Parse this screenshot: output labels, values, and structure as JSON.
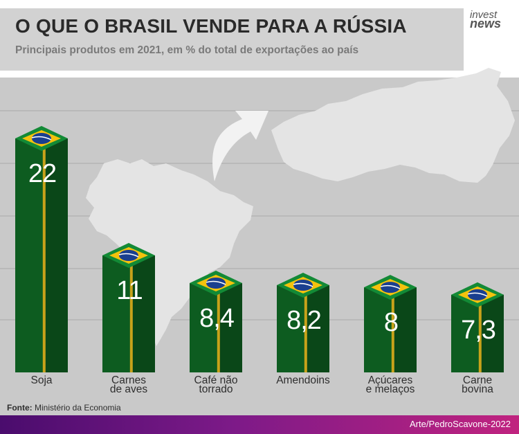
{
  "header": {
    "title": "O QUE O BRASIL VENDE PARA A RÚSSIA",
    "subtitle": "Principais produtos em 2021, em % do total de exportações ao país"
  },
  "logo": {
    "line1": "invest",
    "line2": "news"
  },
  "chart_data": {
    "type": "bar",
    "categories": [
      "Soja",
      "Carnes\nde aves",
      "Café não\ntorrado",
      "Amendoins",
      "Açúcares\ne melaços",
      "Carne\nbovina"
    ],
    "values": [
      22,
      11,
      8.4,
      8.2,
      8,
      7.3
    ],
    "value_labels": [
      "22",
      "11",
      "8,4",
      "8,2",
      "8",
      "7,3"
    ],
    "ylim": [
      0,
      22
    ],
    "grid": true,
    "colors": {
      "bar": "#0d5c20",
      "bar_side": "#0a4718",
      "stripe": "#c8a21a",
      "flag_yellow": "#f4c20d",
      "flag_blue": "#1a3f8f"
    }
  },
  "source": {
    "label": "Fonte:",
    "text": "Ministério da Economia"
  },
  "footer": {
    "credit": "Arte/PedroScavone-2022"
  }
}
